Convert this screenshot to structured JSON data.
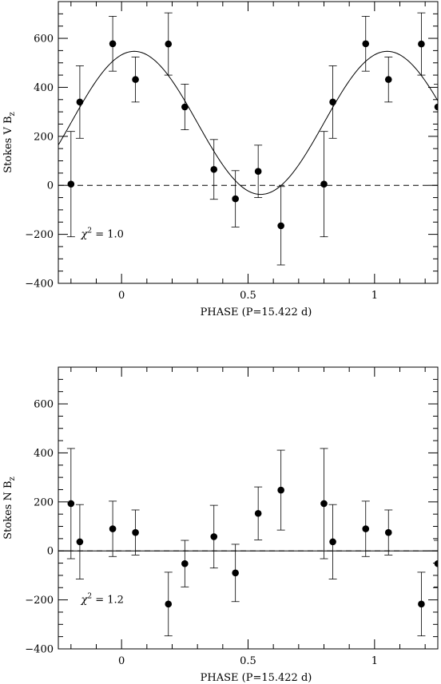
{
  "chart_data": [
    {
      "type": "scatter",
      "xlabel": "PHASE (P=15.422 d)",
      "ylabel": "Stokes V  B_z",
      "ylabel_main": "Stokes V  B",
      "ylabel_sub": "z",
      "xlim": [
        -0.25,
        1.25
      ],
      "ylim": [
        -400,
        750
      ],
      "x_ticks": [
        0,
        0.5,
        1
      ],
      "x_tick_labels": [
        "0",
        "0.5",
        "1"
      ],
      "y_ticks": [
        -400,
        -200,
        0,
        200,
        400,
        600
      ],
      "y_tick_labels": [
        "−400",
        "−200",
        "0",
        "200",
        "400",
        "600"
      ],
      "annotation": {
        "symbol": "χ",
        "sup": "2",
        "text": " = 1.0"
      },
      "zero_line": true,
      "series": [
        {
          "points": [
            {
              "x": -0.2,
              "y": 5,
              "err": 215
            },
            {
              "x": -0.165,
              "y": 340,
              "err": 148
            },
            {
              "x": -0.035,
              "y": 578,
              "err": 112
            },
            {
              "x": 0.055,
              "y": 432,
              "err": 92
            },
            {
              "x": 0.185,
              "y": 577,
              "err": 127
            },
            {
              "x": 0.25,
              "y": 320,
              "err": 93
            },
            {
              "x": 0.365,
              "y": 65,
              "err": 122
            },
            {
              "x": 0.45,
              "y": -55,
              "err": 115
            },
            {
              "x": 0.54,
              "y": 57,
              "err": 107
            },
            {
              "x": 0.63,
              "y": -165,
              "err": 160
            },
            {
              "x": 0.8,
              "y": 5,
              "err": 215
            },
            {
              "x": 0.835,
              "y": 340,
              "err": 148
            },
            {
              "x": 0.965,
              "y": 578,
              "err": 112
            },
            {
              "x": 1.055,
              "y": 432,
              "err": 92
            },
            {
              "x": 1.185,
              "y": 577,
              "err": 127
            },
            {
              "x": 1.25,
              "y": 320,
              "err": 93
            }
          ]
        }
      ],
      "fit": {
        "type": "sine",
        "offset": 255,
        "amplitude": 292,
        "phase": 0.05
      }
    },
    {
      "type": "scatter",
      "xlabel": "PHASE (P=15.422 d)",
      "ylabel": "Stokes N  B_z",
      "ylabel_main": "Stokes N  B",
      "ylabel_sub": "z",
      "xlim": [
        -0.25,
        1.25
      ],
      "ylim": [
        -400,
        750
      ],
      "x_ticks": [
        0,
        0.5,
        1
      ],
      "x_tick_labels": [
        "0",
        "0.5",
        "1"
      ],
      "y_ticks": [
        -400,
        -200,
        0,
        200,
        400,
        600
      ],
      "y_tick_labels": [
        "−400",
        "−200",
        "0",
        "200",
        "400",
        "600"
      ],
      "annotation": {
        "symbol": "χ",
        "sup": "2",
        "text": " = 1.2"
      },
      "zero_line": true,
      "series": [
        {
          "points": [
            {
              "x": -0.2,
              "y": 193,
              "err": 225
            },
            {
              "x": -0.165,
              "y": 37,
              "err": 152
            },
            {
              "x": -0.035,
              "y": 90,
              "err": 113
            },
            {
              "x": 0.055,
              "y": 75,
              "err": 92
            },
            {
              "x": 0.185,
              "y": -217,
              "err": 130
            },
            {
              "x": 0.25,
              "y": -52,
              "err": 95
            },
            {
              "x": 0.365,
              "y": 58,
              "err": 128
            },
            {
              "x": 0.45,
              "y": -90,
              "err": 117
            },
            {
              "x": 0.54,
              "y": 153,
              "err": 108
            },
            {
              "x": 0.63,
              "y": 248,
              "err": 163
            },
            {
              "x": 0.8,
              "y": 193,
              "err": 225
            },
            {
              "x": 0.835,
              "y": 37,
              "err": 152
            },
            {
              "x": 0.965,
              "y": 90,
              "err": 113
            },
            {
              "x": 1.055,
              "y": 75,
              "err": 92
            },
            {
              "x": 1.185,
              "y": -217,
              "err": 130
            },
            {
              "x": 1.25,
              "y": -52,
              "err": 95
            }
          ]
        }
      ],
      "fit": {
        "type": "constant",
        "value": 0
      }
    }
  ]
}
